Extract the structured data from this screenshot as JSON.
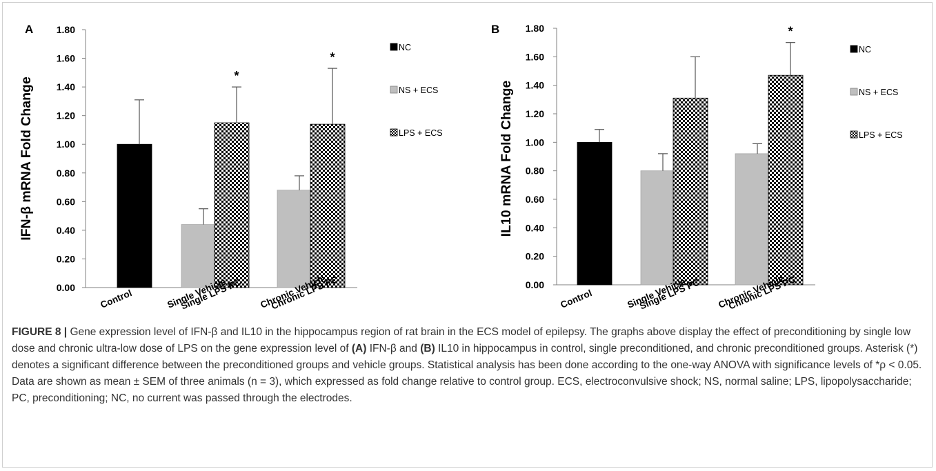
{
  "chart_data": [
    {
      "type": "bar",
      "panel_label": "A",
      "ylabel": "IFN-β mRNA Fold Change",
      "ylim": [
        0,
        1.8
      ],
      "yticks": [
        "0.00",
        "0.20",
        "0.40",
        "0.60",
        "0.80",
        "1.00",
        "1.20",
        "1.40",
        "1.60",
        "1.80"
      ],
      "categories": [
        "Control",
        "Single Vehicle",
        "Single LPS PC",
        "Chronic Vehicle",
        "Chronic LPS PC"
      ],
      "bars": [
        {
          "category": "Control",
          "series": "NC",
          "value": 1.0,
          "error": 0.31,
          "sig": ""
        },
        {
          "category": "Single Vehicle",
          "series": "NS + ECS",
          "value": 0.44,
          "error": 0.11,
          "sig": ""
        },
        {
          "category": "Single LPS PC",
          "series": "LPS + ECS",
          "value": 1.15,
          "error": 0.25,
          "sig": "*"
        },
        {
          "category": "Chronic Vehicle",
          "series": "NS + ECS",
          "value": 0.68,
          "error": 0.1,
          "sig": ""
        },
        {
          "category": "Chronic LPS PC",
          "series": "LPS + ECS",
          "value": 1.14,
          "error": 0.39,
          "sig": "*"
        }
      ],
      "legend": [
        "NC",
        "NS + ECS",
        "LPS + ECS"
      ],
      "legend_position": "right"
    },
    {
      "type": "bar",
      "panel_label": "B",
      "ylabel": "IL10 mRNA Fold Change",
      "ylim": [
        0,
        1.8
      ],
      "yticks": [
        "0.00",
        "0.20",
        "0.40",
        "0.60",
        "0.80",
        "1.00",
        "1.20",
        "1.40",
        "1.60",
        "1.80"
      ],
      "categories": [
        "Control",
        "Single Vehicle",
        "Single LPS PC",
        "Chronic Vehicle",
        "Chronic LPS PC"
      ],
      "bars": [
        {
          "category": "Control",
          "series": "NC",
          "value": 1.0,
          "error": 0.09,
          "sig": ""
        },
        {
          "category": "Single Vehicle",
          "series": "NS + ECS",
          "value": 0.8,
          "error": 0.12,
          "sig": ""
        },
        {
          "category": "Single LPS PC",
          "series": "LPS + ECS",
          "value": 1.31,
          "error": 0.29,
          "sig": ""
        },
        {
          "category": "Chronic Vehicle",
          "series": "NS + ECS",
          "value": 0.92,
          "error": 0.07,
          "sig": ""
        },
        {
          "category": "Chronic LPS PC",
          "series": "LPS + ECS",
          "value": 1.47,
          "error": 0.23,
          "sig": "*"
        }
      ],
      "legend": [
        "NC",
        "NS + ECS",
        "LPS + ECS"
      ],
      "legend_position": "right"
    }
  ],
  "series_colors": {
    "NC": "#000000",
    "NS + ECS": "#bfbfbf",
    "LPS + ECS": "checkered"
  },
  "caption": {
    "lead": "FIGURE 8 |",
    "p1": " Gene expression level of IFN-β and IL10 in the hippocampus region of rat brain in the ECS model of epilepsy. The graphs above display the effect of preconditioning by single low dose and chronic ultra-low dose of LPS on the gene expression level of ",
    "ref_a": "(A)",
    "p2": " IFN-β and ",
    "ref_b": "(B)",
    "p3": " IL10 in hippocampus in control, single preconditioned, and chronic preconditioned groups. Asterisk (*) denotes a significant difference between the preconditioned groups and vehicle groups. Statistical analysis has been done according to the one-way ANOVA with significance levels of *ρ < 0.05. Data are shown as mean ± SEM of three animals (n = 3), which expressed as fold change relative to control group. ECS, electroconvulsive shock; NS, normal saline; LPS, lipopolysaccharide; PC, preconditioning; NC, no current was passed through the electrodes."
  }
}
